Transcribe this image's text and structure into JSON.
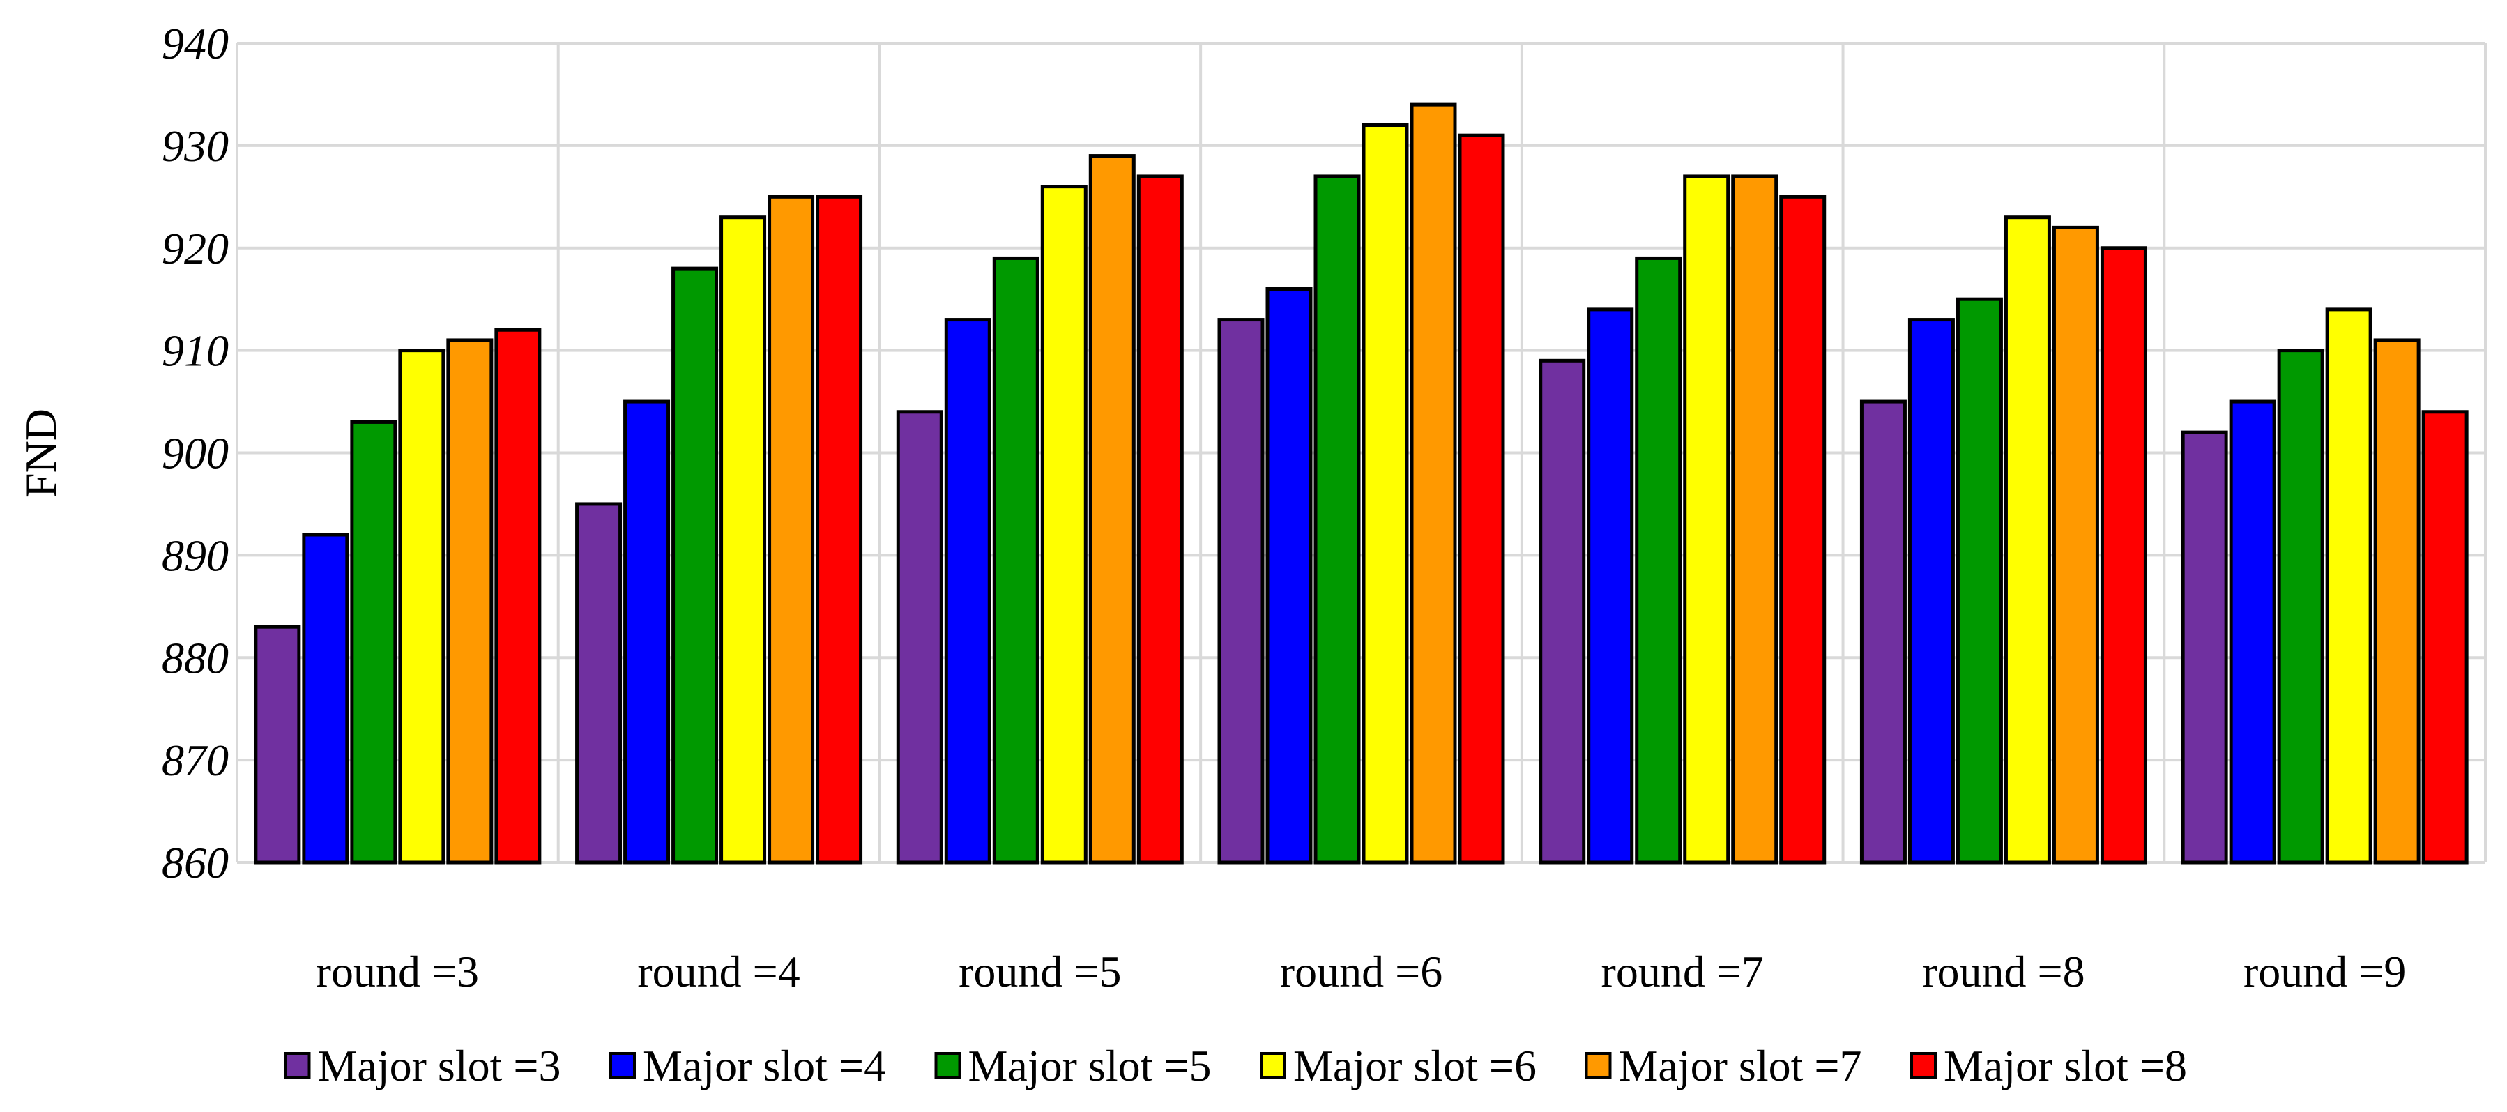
{
  "chart_data": {
    "type": "bar",
    "title": "",
    "xlabel": "",
    "ylabel": "FND",
    "ylim": [
      860,
      940
    ],
    "yticks": [
      860,
      870,
      880,
      890,
      900,
      910,
      920,
      930,
      940
    ],
    "grid": true,
    "legend_position": "bottom",
    "categories": [
      "round =3",
      "round =4",
      "round =5",
      "round =6",
      "round =7",
      "round =8",
      "round =9"
    ],
    "series": [
      {
        "name": "Major slot =3",
        "color": "#7030A0",
        "values": [
          883,
          895,
          904,
          913,
          909,
          905,
          902
        ]
      },
      {
        "name": "Major slot =4",
        "color": "#0000FF",
        "values": [
          892,
          905,
          913,
          916,
          914,
          913,
          905
        ]
      },
      {
        "name": "Major slot =5",
        "color": "#009900",
        "values": [
          903,
          918,
          919,
          927,
          919,
          915,
          910
        ]
      },
      {
        "name": "Major slot =6",
        "color": "#FFFF00",
        "values": [
          910,
          923,
          926,
          932,
          927,
          923,
          914
        ]
      },
      {
        "name": "Major slot =7",
        "color": "#FF9900",
        "values": [
          911,
          925,
          929,
          934,
          927,
          922,
          911
        ]
      },
      {
        "name": "Major slot =8",
        "color": "#FF0000",
        "values": [
          912,
          925,
          927,
          931,
          925,
          920,
          904
        ]
      }
    ]
  }
}
